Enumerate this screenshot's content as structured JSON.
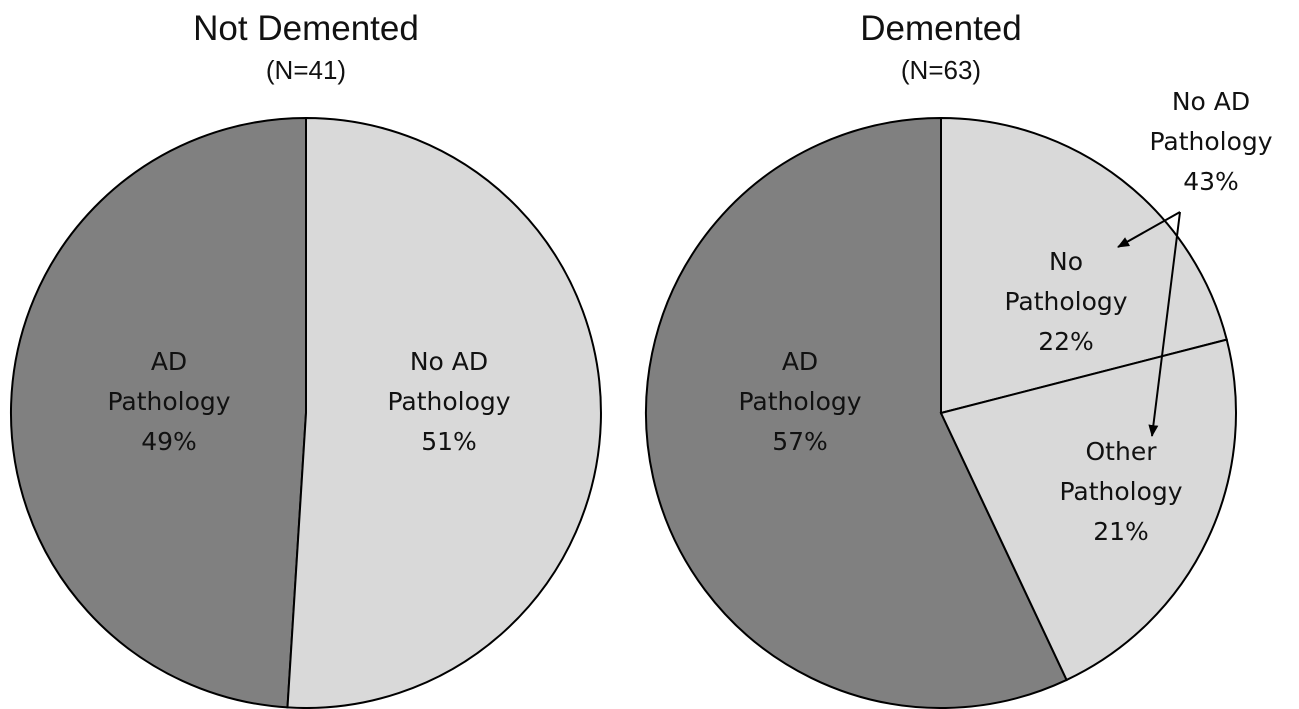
{
  "chart_data": [
    {
      "type": "pie",
      "title": "Not Demented",
      "subtitle": "(N=41)",
      "slices": [
        {
          "lines": [
            "AD",
            "Pathology",
            "49%"
          ],
          "value": 49,
          "color": "#808080"
        },
        {
          "lines": [
            "No AD",
            "Pathology",
            "51%"
          ],
          "value": 51,
          "color": "#d9d9d9"
        }
      ]
    },
    {
      "type": "pie",
      "title": "Demented",
      "subtitle": "(N=63)",
      "slices": [
        {
          "lines": [
            "AD",
            "Pathology",
            "57%"
          ],
          "value": 57,
          "color": "#808080"
        },
        {
          "lines": [
            "Other",
            "Pathology",
            "21%"
          ],
          "value": 21,
          "color": "#d9d9d9"
        },
        {
          "lines": [
            "No",
            "Pathology",
            "22%"
          ],
          "value": 22,
          "color": "#d9d9d9"
        }
      ],
      "annotation": {
        "lines": [
          "No AD",
          "Pathology",
          "43%"
        ]
      }
    }
  ]
}
